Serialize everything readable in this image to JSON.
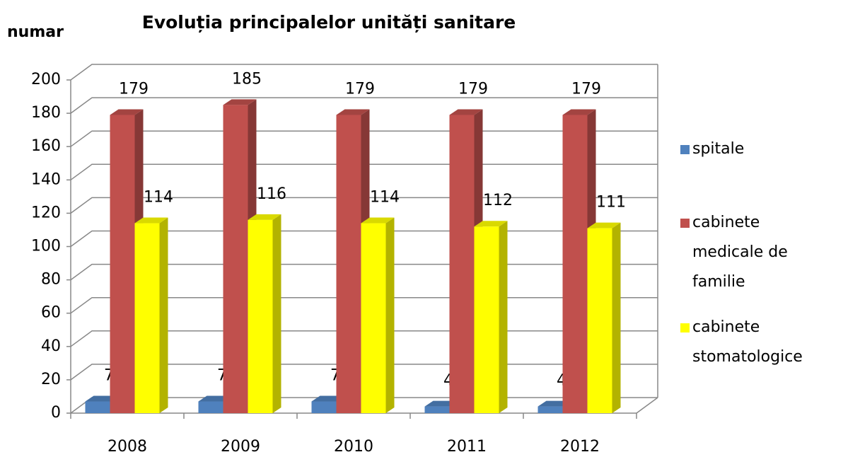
{
  "chart_data": {
    "type": "bar3d",
    "title": "Evoluția principalelor unități sanitare",
    "y_label": "numar",
    "categories": [
      "2008",
      "2009",
      "2010",
      "2011",
      "2012"
    ],
    "series": [
      {
        "name": "spitale",
        "color": "#4f81bd",
        "values": [
          7,
          7,
          7,
          4,
          4
        ]
      },
      {
        "name": "cabinete medicale de familie",
        "color": "#c0504d",
        "values": [
          179,
          185,
          179,
          179,
          179
        ]
      },
      {
        "name": "cabinete stomatologice",
        "color": "#ffff00",
        "values": [
          114,
          116,
          114,
          112,
          111
        ]
      }
    ],
    "ylim": [
      0,
      200
    ],
    "yticks": [
      0,
      20,
      40,
      60,
      80,
      100,
      120,
      140,
      160,
      180,
      200
    ],
    "grid": true,
    "legend": "right"
  }
}
